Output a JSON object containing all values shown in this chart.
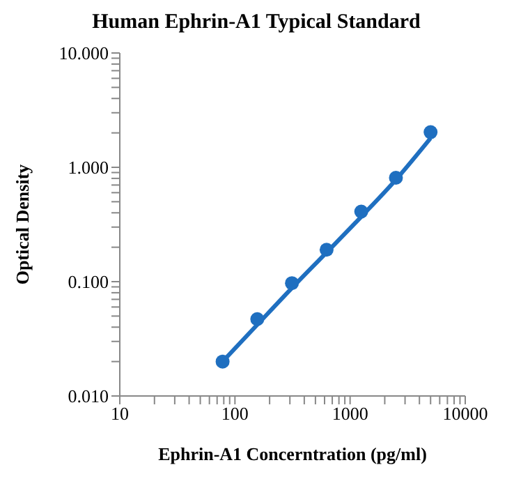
{
  "chart_data": {
    "type": "scatter",
    "title": "Human Ephrin-A1 Typical Standard",
    "xlabel": "Ephrin-A1 Concerntration (pg/ml)",
    "ylabel": "Optical Density",
    "log": "xy",
    "xlim": [
      10,
      10000
    ],
    "xticks": [
      10,
      {
        "value": 20,
        "label": null
      },
      {
        "value": 30,
        "label": null
      },
      {
        "value": 40,
        "label": null
      },
      {
        "value": 50,
        "label": null
      },
      {
        "value": 60,
        "label": null
      },
      {
        "value": 70,
        "label": null
      },
      {
        "value": 80,
        "label": null
      },
      {
        "value": 90,
        "label": null
      },
      100,
      {
        "value": 200,
        "label": null
      },
      {
        "value": 300,
        "label": null
      },
      {
        "value": 400,
        "label": null
      },
      {
        "value": 500,
        "label": null
      },
      {
        "value": 600,
        "label": null
      },
      {
        "value": 700,
        "label": null
      },
      {
        "value": 800,
        "label": null
      },
      {
        "value": 900,
        "label": null
      },
      1000,
      {
        "value": 2000,
        "label": null
      },
      {
        "value": 3000,
        "label": null
      },
      {
        "value": 4000,
        "label": null
      },
      {
        "value": 5000,
        "label": null
      },
      {
        "value": 6000,
        "label": null
      },
      {
        "value": 7000,
        "label": null
      },
      {
        "value": 8000,
        "label": null
      },
      {
        "value": 9000,
        "label": null
      },
      10000
    ],
    "ylim": [
      0.01,
      10
    ],
    "yticks": [
      {
        "value": 0.01,
        "label": "0.010"
      },
      {
        "value": 0.02,
        "label": null
      },
      {
        "value": 0.03,
        "label": null
      },
      {
        "value": 0.04,
        "label": null
      },
      {
        "value": 0.05,
        "label": null
      },
      {
        "value": 0.06,
        "label": null
      },
      {
        "value": 0.07,
        "label": null
      },
      {
        "value": 0.08,
        "label": null
      },
      {
        "value": 0.09,
        "label": null
      },
      {
        "value": 0.1,
        "label": "0.100"
      },
      {
        "value": 0.2,
        "label": null
      },
      {
        "value": 0.3,
        "label": null
      },
      {
        "value": 0.4,
        "label": null
      },
      {
        "value": 0.5,
        "label": null
      },
      {
        "value": 0.6,
        "label": null
      },
      {
        "value": 0.7,
        "label": null
      },
      {
        "value": 0.8,
        "label": null
      },
      {
        "value": 0.9,
        "label": null
      },
      {
        "value": 1,
        "label": "1.000"
      },
      {
        "value": 2,
        "label": null
      },
      {
        "value": 3,
        "label": null
      },
      {
        "value": 4,
        "label": null
      },
      {
        "value": 5,
        "label": null
      },
      {
        "value": 6,
        "label": null
      },
      {
        "value": 7,
        "label": null
      },
      {
        "value": 8,
        "label": null
      },
      {
        "value": 9,
        "label": null
      },
      {
        "value": 10,
        "label": "10.000"
      }
    ],
    "series": [
      {
        "type": "line",
        "marker": "none",
        "color": "#1f6fc0",
        "x": [
          78.125,
          156.25,
          312.5,
          625,
          1250,
          2500,
          5000
        ],
        "values": [
          0.02,
          0.042,
          0.088,
          0.18,
          0.37,
          0.78,
          1.8
        ]
      },
      {
        "marker": "circle",
        "color": "#1f6fc0",
        "x": [
          78.125,
          156.25,
          312.5,
          625,
          1250,
          2500,
          5000
        ],
        "values": [
          0.02,
          0.047,
          0.097,
          0.19,
          0.41,
          0.81,
          2.03
        ]
      }
    ]
  }
}
